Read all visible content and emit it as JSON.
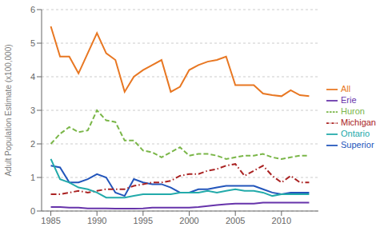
{
  "chart_data": {
    "type": "line",
    "ylabel": "Adult Population Estimate (x100,000)",
    "x": [
      1985,
      1986,
      1987,
      1988,
      1989,
      1990,
      1991,
      1992,
      1993,
      1994,
      1995,
      1996,
      1997,
      1998,
      1999,
      2000,
      2001,
      2002,
      2003,
      2004,
      2005,
      2006,
      2007,
      2008,
      2009,
      2010,
      2011,
      2012,
      2013
    ],
    "series": [
      {
        "name": "All",
        "color": "#E87722",
        "line_style": "solid",
        "values": [
          5.5,
          4.6,
          4.6,
          4.1,
          4.7,
          5.3,
          4.7,
          4.5,
          3.55,
          4.0,
          4.2,
          4.35,
          4.5,
          3.55,
          3.7,
          4.2,
          4.35,
          4.45,
          4.5,
          4.6,
          3.75,
          3.75,
          3.75,
          3.5,
          3.45,
          3.42,
          3.6,
          3.45,
          3.42
        ]
      },
      {
        "name": "Huron",
        "color": "#7AB648",
        "line_style": "dashed",
        "values": [
          2.0,
          2.3,
          2.5,
          2.35,
          2.4,
          3.0,
          2.7,
          2.65,
          2.1,
          2.1,
          1.8,
          1.75,
          1.6,
          1.75,
          1.9,
          1.65,
          1.7,
          1.7,
          1.65,
          1.55,
          1.6,
          1.65,
          1.65,
          1.7,
          1.6,
          1.55,
          1.6,
          1.65,
          1.65
        ]
      },
      {
        "name": "Superior",
        "color": "#2255BB",
        "line_style": "solid",
        "values": [
          1.35,
          1.3,
          0.85,
          0.85,
          0.95,
          1.1,
          1.0,
          0.55,
          0.45,
          0.95,
          0.85,
          0.8,
          0.8,
          0.7,
          0.55,
          0.55,
          0.65,
          0.65,
          0.7,
          0.75,
          0.75,
          0.75,
          0.75,
          0.65,
          0.55,
          0.5,
          0.55,
          0.55,
          0.55
        ]
      },
      {
        "name": "Michigan",
        "color": "#AA2222",
        "line_style": "dashdot",
        "values": [
          0.5,
          0.5,
          0.55,
          0.6,
          0.55,
          0.6,
          0.65,
          0.65,
          0.65,
          0.75,
          0.8,
          0.85,
          0.85,
          0.9,
          1.05,
          1.1,
          1.1,
          1.2,
          1.25,
          1.35,
          1.4,
          1.05,
          1.2,
          1.35,
          1.05,
          0.85,
          1.05,
          0.85,
          0.85
        ]
      },
      {
        "name": "Ontario",
        "color": "#22AAAA",
        "line_style": "solid",
        "values": [
          1.55,
          0.95,
          0.85,
          0.7,
          0.65,
          0.55,
          0.4,
          0.4,
          0.4,
          0.45,
          0.5,
          0.5,
          0.5,
          0.5,
          0.55,
          0.55,
          0.55,
          0.6,
          0.55,
          0.6,
          0.65,
          0.6,
          0.6,
          0.55,
          0.45,
          0.5,
          0.5,
          0.5,
          0.5
        ]
      },
      {
        "name": "Erie",
        "color": "#6633AA",
        "line_style": "solid",
        "values": [
          0.12,
          0.12,
          0.1,
          0.1,
          0.08,
          0.08,
          0.08,
          0.07,
          0.07,
          0.07,
          0.08,
          0.1,
          0.1,
          0.1,
          0.1,
          0.1,
          0.12,
          0.15,
          0.18,
          0.2,
          0.22,
          0.22,
          0.22,
          0.25,
          0.25,
          0.25,
          0.25,
          0.25,
          0.25
        ]
      }
    ],
    "xlim": [
      1984,
      2014
    ],
    "ylim": [
      0,
      6
    ],
    "xticks": [
      1985,
      1990,
      1995,
      2000,
      2005,
      2010
    ],
    "yticks": [
      0,
      1,
      2,
      3,
      4,
      5,
      6
    ],
    "grid": true,
    "legend": "right"
  }
}
